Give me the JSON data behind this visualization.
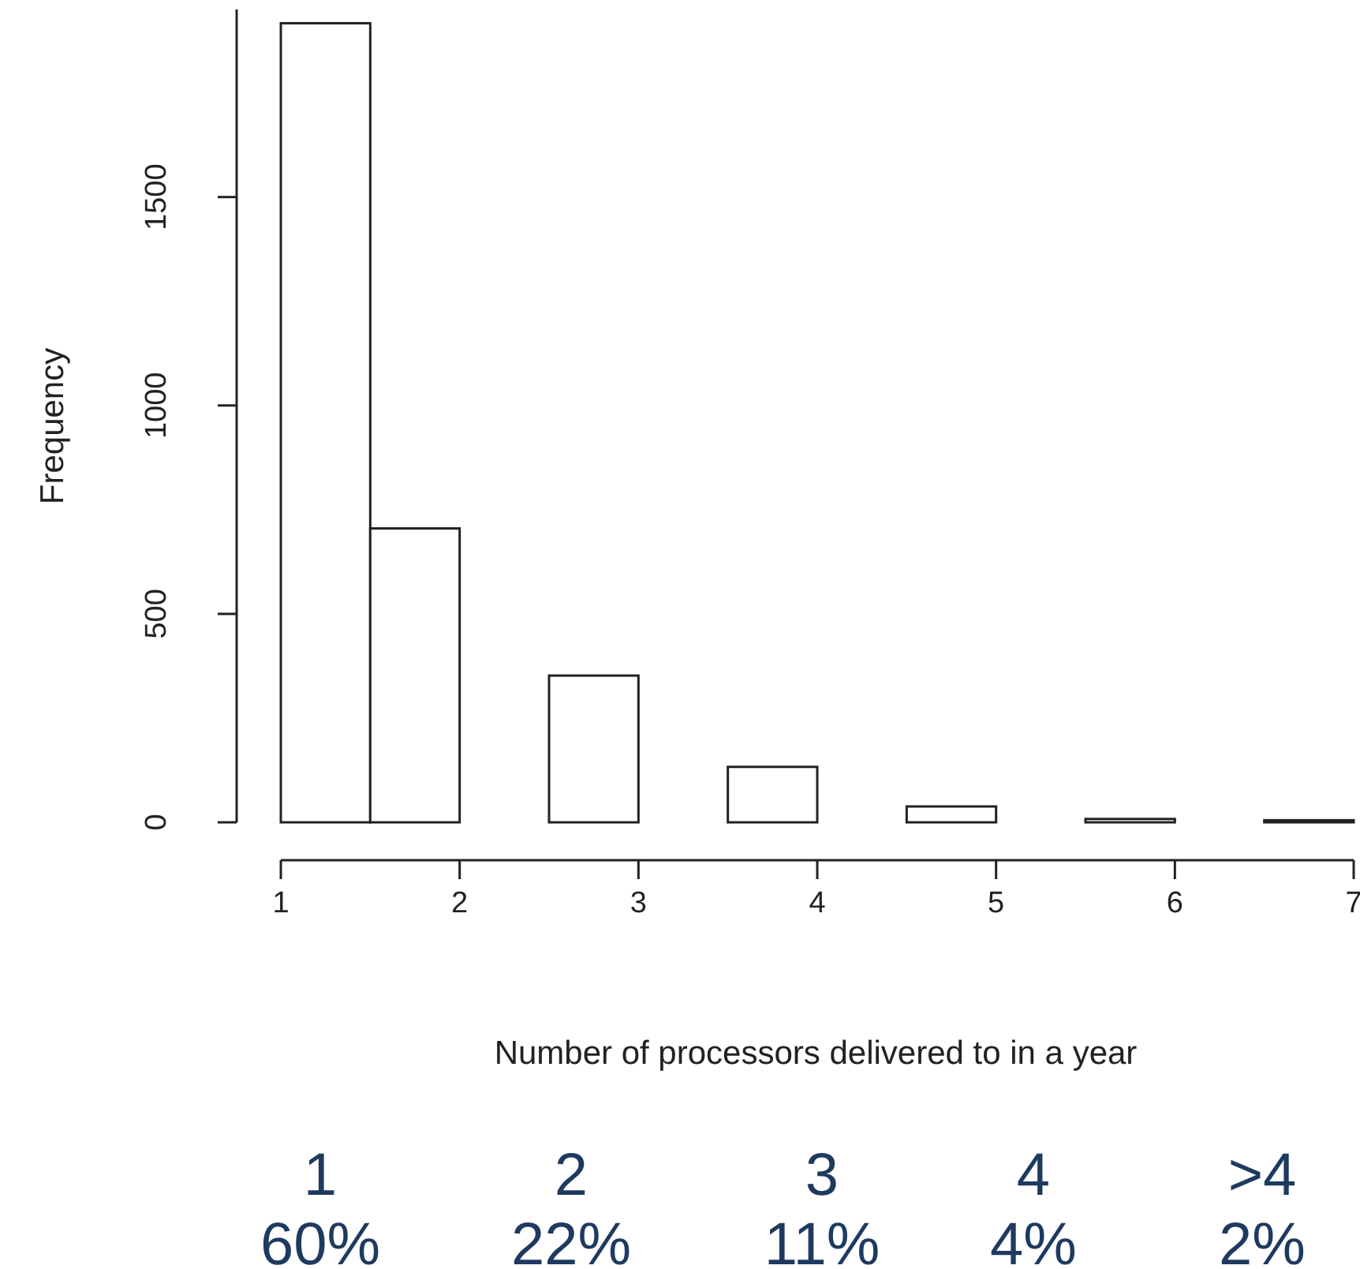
{
  "chart_data": {
    "type": "histogram",
    "xlabel": "Number of processors delivered to in a year",
    "ylabel": "Frequency",
    "bins": [
      1,
      1.5,
      2,
      2.5,
      3,
      3.5,
      4,
      4.5,
      5,
      5.5,
      6,
      6.5,
      7
    ],
    "values": [
      1917,
      705,
      0,
      352,
      0,
      133,
      0,
      38,
      0,
      8,
      0,
      5
    ],
    "color": "#ffffff",
    "xlim": [
      1,
      7
    ],
    "xticks": [
      1,
      2,
      3,
      4,
      5,
      6,
      7
    ],
    "ylim": [
      0,
      1950
    ],
    "yticks": [
      0,
      500,
      1000,
      1500
    ],
    "grid": false,
    "annotations": [
      "1",
      "2",
      "3",
      "4",
      ">4",
      "60%",
      "22%",
      "11%",
      "4%",
      "2%"
    ]
  }
}
